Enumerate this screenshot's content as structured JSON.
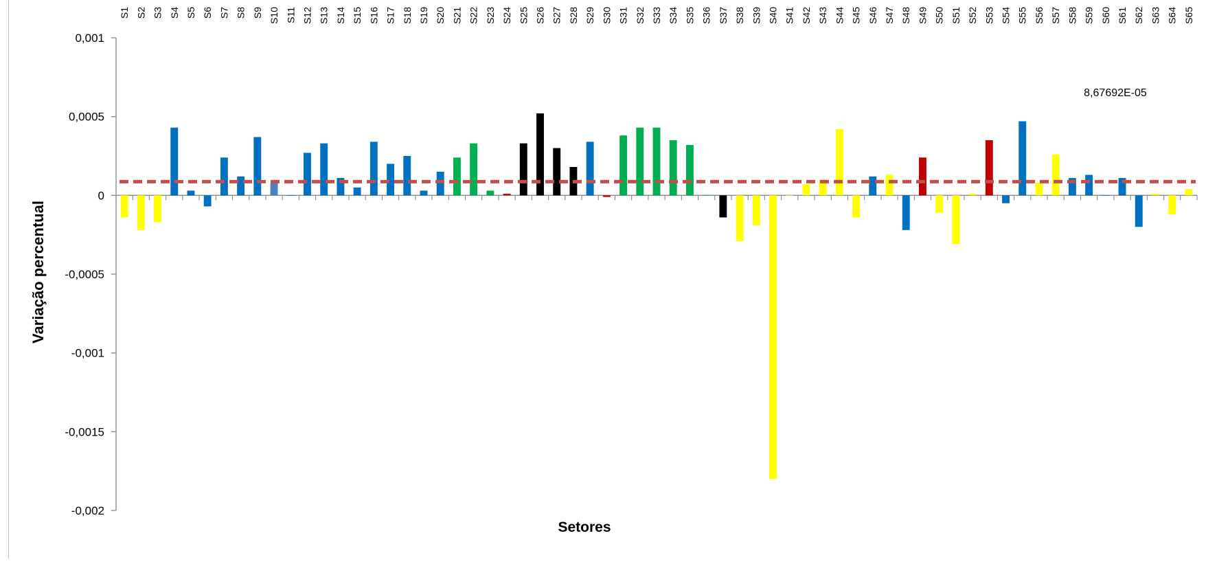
{
  "chart_data": {
    "type": "bar",
    "title": "",
    "xlabel": "Setores",
    "ylabel": "Variação percentual",
    "ylim": [
      -0.002,
      0.001
    ],
    "yticks": [
      0.001,
      0.0005,
      0,
      -0.0005,
      -0.001,
      -0.0015,
      -0.002
    ],
    "ytick_labels": [
      "0,001",
      "0,0005",
      "0",
      "-0,0005",
      "-0,001",
      "-0,0015",
      "-0,002"
    ],
    "x_tick_position": "top",
    "grid": false,
    "legend": false,
    "categories": [
      "S1",
      "S2",
      "S3",
      "S4",
      "S5",
      "S6",
      "S7",
      "S8",
      "S9",
      "S10",
      "S11",
      "S12",
      "S13",
      "S14",
      "S15",
      "S16",
      "S17",
      "S18",
      "S19",
      "S20",
      "S21",
      "S22",
      "S23",
      "S24",
      "S25",
      "S26",
      "S27",
      "S28",
      "S29",
      "S30",
      "S31",
      "S32",
      "S33",
      "S34",
      "S35",
      "S36",
      "S37",
      "S38",
      "S39",
      "S40",
      "S41",
      "S42",
      "S43",
      "S44",
      "S45",
      "S46",
      "S47",
      "S48",
      "S49",
      "S50",
      "S51",
      "S52",
      "S53",
      "S54",
      "S55",
      "S56",
      "S57",
      "S58",
      "S59",
      "S60",
      "S61",
      "S62",
      "S63",
      "S64",
      "S65"
    ],
    "values": [
      -0.00014,
      -0.00022,
      -0.00017,
      0.00043,
      3e-05,
      -7e-05,
      0.00024,
      0.00012,
      0.00037,
      8e-05,
      0,
      0.00027,
      0.00033,
      0.00011,
      5e-05,
      0.00034,
      0.0002,
      0.00025,
      3e-05,
      0.00015,
      0.00024,
      0.00033,
      3e-05,
      1e-05,
      0.00033,
      0.00052,
      0.0003,
      0.00018,
      0.00034,
      -1e-05,
      0.00038,
      0.00043,
      0.00043,
      0.00035,
      0.00032,
      0,
      -0.00014,
      -0.00029,
      -0.00019,
      -0.0018,
      0,
      7e-05,
      0.0001,
      0.00042,
      -0.00014,
      0.00012,
      0.00013,
      -0.00022,
      0.00024,
      -0.00011,
      -0.00031,
      1e-05,
      0.00035,
      -5e-05,
      0.00047,
      8e-05,
      0.00026,
      0.00011,
      0.00013,
      0,
      0.00011,
      -0.0002,
      1e-05,
      -0.00012,
      4e-05
    ],
    "bar_colors": [
      "#ffff00",
      "#ffff00",
      "#ffff00",
      "#0070c0",
      "#0070c0",
      "#0070c0",
      "#0070c0",
      "#0070c0",
      "#0070c0",
      "#4f81bd",
      "#0070c0",
      "#0070c0",
      "#0070c0",
      "#0070c0",
      "#0070c0",
      "#0070c0",
      "#0070c0",
      "#0070c0",
      "#0070c0",
      "#0070c0",
      "#00b050",
      "#00b050",
      "#00b050",
      "#c00000",
      "#000000",
      "#000000",
      "#000000",
      "#000000",
      "#0070c0",
      "#c00000",
      "#00b050",
      "#00b050",
      "#00b050",
      "#00b050",
      "#00b050",
      "#00b050",
      "#000000",
      "#ffff00",
      "#ffff00",
      "#ffff00",
      "#ffff00",
      "#ffff00",
      "#ffff00",
      "#ffff00",
      "#ffff00",
      "#0070c0",
      "#ffff00",
      "#0070c0",
      "#c00000",
      "#ffff00",
      "#ffff00",
      "#ffff00",
      "#c00000",
      "#0070c0",
      "#0070c0",
      "#ffff00",
      "#ffff00",
      "#0070c0",
      "#0070c0",
      "#0070c0",
      "#0070c0",
      "#0070c0",
      "#ffff00",
      "#ffff00",
      "#ffff00"
    ],
    "reference_line": {
      "value": 8.67692e-05,
      "label": "8,67692E-05",
      "color": "#c0504d",
      "style": "dashed"
    }
  }
}
